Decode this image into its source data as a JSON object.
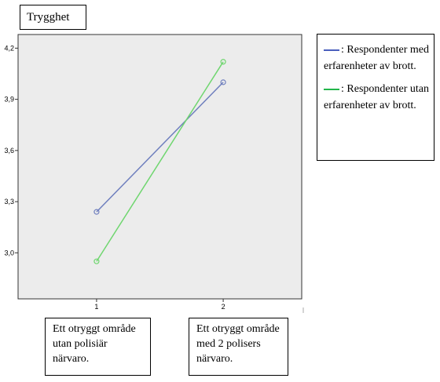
{
  "title": "Trygghet",
  "legend": [
    {
      "symbol": "——",
      "text": ": Respondenter med erfarenheter av brott.",
      "color": "#4a5fbd"
    },
    {
      "symbol": "——",
      "text": ": Respondenter utan erfarenheter av brott.",
      "color": "#22b64a"
    }
  ],
  "category_labels": [
    "Ett otryggt område utan polisiär närvaro.",
    "Ett otryggt område med 2 polisers närvaro."
  ],
  "chart_data": {
    "type": "line",
    "x": [
      1,
      2
    ],
    "x_tick_labels": [
      "1",
      "2"
    ],
    "y_tick_labels": [
      "3,0",
      "3,3",
      "3,6",
      "3,9",
      "4,2"
    ],
    "y_ticks": [
      3.0,
      3.3,
      3.6,
      3.9,
      4.2
    ],
    "ylim": [
      2.73,
      4.28
    ],
    "xlim": [
      0.38,
      2.62
    ],
    "series": [
      {
        "values": [
          3.24,
          4.0
        ],
        "color": "#6f7fbe",
        "marker": "circle"
      },
      {
        "values": [
          2.95,
          4.12
        ],
        "color": "#6fd66f",
        "marker": "circle"
      }
    ],
    "plot_background": "#ececec",
    "grid": false
  }
}
